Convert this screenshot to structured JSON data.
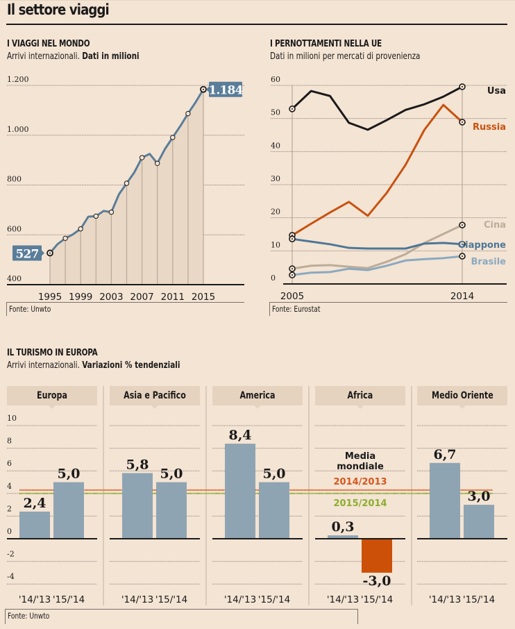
{
  "page": {
    "title": "Il settore viaggi"
  },
  "colors": {
    "background": "#f4e4d4",
    "steel_blue": "#5a7d99",
    "usa": "#1a1a1a",
    "russia": "#c8520f",
    "cina": "#bcac98",
    "giappone": "#4d7696",
    "brasile": "#8aa9c0",
    "bar": "#8fa4b2",
    "bar_negative": "#cc5008",
    "media_2014": "#d6561c",
    "media_2015": "#8aae2c"
  },
  "chart_data": [
    {
      "id": "viaggi-mondo",
      "type": "area",
      "title": "I VIAGGI NEL MONDO",
      "subtitle_plain": "Arrivi internazionali. ",
      "subtitle_bold": "Dati in milioni",
      "source": "Fonte: Unwto",
      "xlabel": "",
      "ylabel": "",
      "ylim": [
        400,
        1200
      ],
      "yticks": [
        400,
        600,
        800,
        1000,
        1200
      ],
      "ytick_labels": [
        "400",
        "600",
        "800",
        "1.000",
        "1.200"
      ],
      "xlim": [
        1995,
        2015
      ],
      "xticks": [
        1995,
        1999,
        2003,
        2007,
        2011,
        2015
      ],
      "xtick_labels": [
        "1995",
        "1999",
        "2003",
        "2007",
        "2011",
        "2015"
      ],
      "grid": true,
      "x": [
        1995,
        1996,
        1997,
        1998,
        1999,
        2000,
        2001,
        2002,
        2003,
        2004,
        2005,
        2006,
        2007,
        2008,
        2009,
        2010,
        2011,
        2012,
        2013,
        2014,
        2015
      ],
      "values": [
        527,
        563,
        586,
        602,
        624,
        673,
        675,
        696,
        691,
        763,
        807,
        851,
        910,
        925,
        887,
        945,
        991,
        1037,
        1087,
        1133,
        1184
      ],
      "marker_years": [
        1995,
        1997,
        1999,
        2001,
        2003,
        2005,
        2007,
        2009,
        2011,
        2013,
        2015
      ],
      "annotations": [
        {
          "x": 1995,
          "label": "527",
          "side": "left"
        },
        {
          "x": 2015,
          "label": "1.184",
          "side": "right"
        }
      ]
    },
    {
      "id": "pernottamenti-ue",
      "type": "line",
      "title": "I PERNOTTAMENTI NELLA UE",
      "subtitle_plain": "Dati in milioni per mercati di provenienza",
      "source": "Fonte: Eurostat",
      "xlabel": "",
      "ylabel": "",
      "ylim": [
        0,
        60
      ],
      "yticks": [
        0,
        10,
        20,
        30,
        40,
        50,
        60
      ],
      "ytick_labels": [
        "0",
        "10",
        "20",
        "30",
        "40",
        "50",
        "60"
      ],
      "xlim": [
        2005,
        2014
      ],
      "xtick_labels": [
        "2005",
        "2014"
      ],
      "xticks": [
        2005,
        2014
      ],
      "grid": true,
      "legend": "right-inline",
      "x": [
        2005,
        2006,
        2007,
        2008,
        2009,
        2010,
        2011,
        2012,
        2013,
        2014
      ],
      "series": [
        {
          "name": "Usa",
          "color_key": "usa",
          "values": [
            52.9,
            58.3,
            56.8,
            48.7,
            46.6,
            49.5,
            52.6,
            54.3,
            56.6,
            59.6
          ]
        },
        {
          "name": "Russia",
          "color_key": "russia",
          "values": [
            14.7,
            18.2,
            21.6,
            24.8,
            20.6,
            27.5,
            36.0,
            46.6,
            54.1,
            48.9
          ]
        },
        {
          "name": "Cina",
          "color_key": "cina",
          "values": [
            4.6,
            5.5,
            5.7,
            5.2,
            4.8,
            6.7,
            9.0,
            12.4,
            15.1,
            17.8
          ]
        },
        {
          "name": "Giappone",
          "color_key": "giappone",
          "values": [
            13.6,
            12.8,
            12.0,
            10.9,
            10.7,
            10.7,
            10.7,
            12.2,
            12.4,
            12.0
          ]
        },
        {
          "name": "Brasile",
          "color_key": "brasile",
          "values": [
            2.7,
            3.4,
            3.6,
            4.6,
            4.2,
            5.5,
            7.1,
            7.5,
            7.8,
            8.4
          ]
        }
      ]
    },
    {
      "id": "turismo-europa",
      "type": "bar",
      "title": "IL TURISMO IN EUROPA",
      "subtitle_plain": "Arrivi internazionali. ",
      "subtitle_bold": "Variazioni % tendenziali",
      "source": "Fonte: Unwto",
      "xlabel": "",
      "ylabel": "",
      "ylim": [
        -5,
        10
      ],
      "yticks": [
        -4,
        -2,
        0,
        2,
        4,
        6,
        8,
        10
      ],
      "ytick_labels": [
        "-4",
        "-2",
        "0",
        "2",
        "4",
        "6",
        "8",
        "10"
      ],
      "grid": true,
      "categories": [
        "'14/'13",
        "'15/'14"
      ],
      "panels": [
        {
          "name": "Europa",
          "values": [
            2.4,
            5.0
          ],
          "labels": [
            "2,4",
            "5,0"
          ]
        },
        {
          "name": "Asia e Pacifico",
          "values": [
            5.8,
            5.0
          ],
          "labels": [
            "5,8",
            "5,0"
          ]
        },
        {
          "name": "America",
          "values": [
            8.4,
            5.0
          ],
          "labels": [
            "8,4",
            "5,0"
          ]
        },
        {
          "name": "Africa",
          "values": [
            0.3,
            -3.0
          ],
          "labels": [
            "0,3",
            "-3,0"
          ]
        },
        {
          "name": "Medio Oriente",
          "values": [
            6.7,
            3.0
          ],
          "labels": [
            "6,7",
            "3,0"
          ]
        }
      ],
      "reference_lines": {
        "title_line1": "Media",
        "title_line2": "mondiale",
        "lines": [
          {
            "label": "2014/2013",
            "value": 4.3,
            "color_key": "media_2014"
          },
          {
            "label": "2015/2014",
            "value": 4.0,
            "color_key": "media_2015"
          }
        ]
      }
    }
  ]
}
